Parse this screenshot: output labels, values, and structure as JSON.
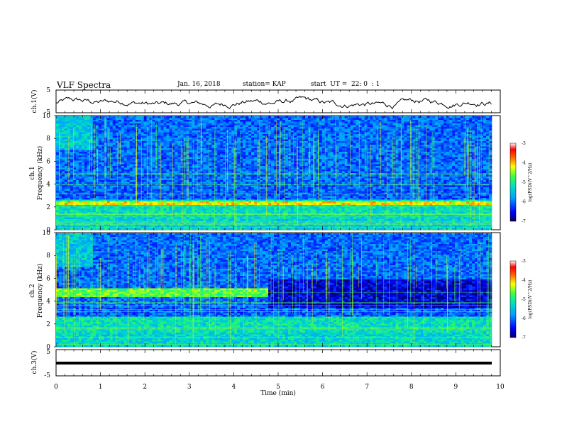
{
  "header": {
    "title": "VLF Spectra",
    "date": "Jan. 16, 2018",
    "station": "station= KAP",
    "start_time": "start  UT =  22: 0  : 1"
  },
  "chart_data": [
    {
      "type": "line",
      "ylabel": "ch.1(V)",
      "ylim": [
        -5,
        5
      ],
      "ytick_labels": [
        "5",
        "-5"
      ],
      "xlim": [
        0,
        10
      ],
      "note": "noisy voltage trace oscillating around -1 V"
    },
    {
      "type": "heatmap",
      "channel_label": "ch.1",
      "ylabel": "Frequency  (kHz)",
      "ylim": [
        0,
        10
      ],
      "ytick_labels": [
        "0",
        "2",
        "4",
        "6",
        "8",
        "10"
      ],
      "xlim": [
        0,
        9.83
      ],
      "colorbar": {
        "label": "log(PSD)(V^2/Hz)",
        "range": [
          -7,
          -3
        ],
        "tick_labels": [
          "-3",
          "-4",
          "-5",
          "-6",
          "-7"
        ]
      }
    },
    {
      "type": "heatmap",
      "channel_label": "ch.2",
      "ylabel": "Frequency  (kHz)",
      "ylim": [
        0,
        10
      ],
      "ytick_labels": [
        "0",
        "2",
        "4",
        "6",
        "8",
        "10"
      ],
      "xlim": [
        0,
        9.83
      ],
      "colorbar": {
        "label": "log(PSD)(V^2/Hz)",
        "range": [
          -7,
          -3
        ],
        "tick_labels": [
          "-3",
          "-4",
          "-5",
          "-6",
          "-7"
        ]
      }
    },
    {
      "type": "line",
      "ylabel": "ch.3(V)",
      "ylim": [
        -5,
        5
      ],
      "ytick_labels": [
        "5",
        "-5"
      ],
      "xlabel": "Time  (min)",
      "xlim": [
        0,
        10
      ],
      "xtick_labels": [
        "0",
        "1",
        "2",
        "3",
        "4",
        "5",
        "6",
        "7",
        "8",
        "9",
        "10"
      ],
      "note": "flat thick line near -1.5 V"
    }
  ]
}
